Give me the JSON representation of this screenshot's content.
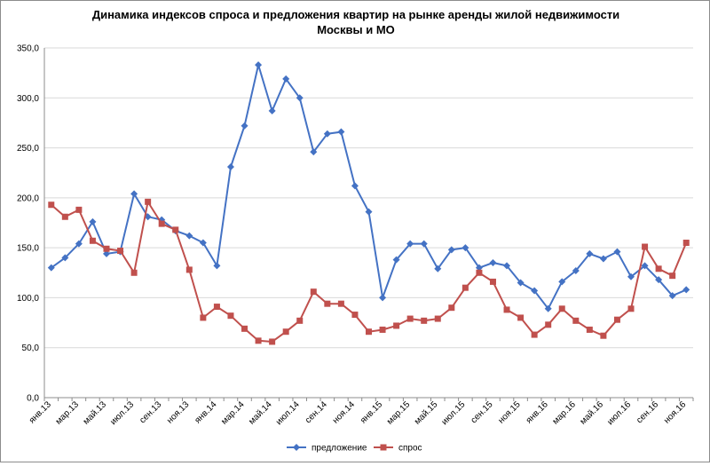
{
  "chart_data": {
    "type": "line",
    "title_lines": [
      "Динамика индексов спроса и предложения квартир на рынке аренды жилой недвижимости",
      "Москвы и МО"
    ],
    "xlabel": "",
    "ylabel": "",
    "ylim": [
      0,
      350
    ],
    "y_ticks": [
      "0,0",
      "50,0",
      "100,0",
      "150,0",
      "200,0",
      "250,0",
      "300,0",
      "350,0"
    ],
    "grid": true,
    "legend_position": "bottom",
    "x": [
      "янв.13",
      "фев.13",
      "мар.13",
      "апр.13",
      "май.13",
      "июн.13",
      "июл.13",
      "авг.13",
      "сен.13",
      "окт.13",
      "ноя.13",
      "дек.13",
      "янв.14",
      "фев.14",
      "мар.14",
      "апр.14",
      "май.14",
      "июн.14",
      "июл.14",
      "авг.14",
      "сен.14",
      "окт.14",
      "ноя.14",
      "дек.14",
      "янв.15",
      "фев.15",
      "мар.15",
      "апр.15",
      "май.15",
      "июн.15",
      "июл.15",
      "авг.15",
      "сен.15",
      "окт.15",
      "ноя.15",
      "дек.15",
      "янв.16",
      "фев.16",
      "мар.16",
      "апр.16",
      "май.16",
      "июн.16",
      "июл.16",
      "авг.16",
      "сен.16",
      "окт.16",
      "ноя.16"
    ],
    "x_tick_labels": [
      "янв.13",
      "мар.13",
      "май.13",
      "июл.13",
      "сен.13",
      "ноя.13",
      "янв.14",
      "мар.14",
      "май.14",
      "июл.14",
      "сен.14",
      "ноя.14",
      "янв.15",
      "мар.15",
      "май.15",
      "июл.15",
      "сен.15",
      "ноя.15",
      "янв.16",
      "мар.16",
      "май.16",
      "июл.16",
      "сен.16",
      "ноя.16"
    ],
    "series": [
      {
        "name": "предложение",
        "color": "#4472c4",
        "marker": "diamond",
        "values": [
          130,
          140,
          154,
          176,
          144,
          146,
          204,
          181,
          178,
          167,
          162,
          155,
          132,
          231,
          272,
          333,
          287,
          319,
          300,
          246,
          264,
          266,
          212,
          186,
          100,
          138,
          154,
          154,
          129,
          148,
          150,
          130,
          135,
          132,
          115,
          107,
          89,
          116,
          127,
          144,
          139,
          146,
          121,
          132,
          118,
          102,
          108
        ]
      },
      {
        "name": "спрос",
        "color": "#c0504d",
        "marker": "square",
        "values": [
          193,
          181,
          188,
          157,
          149,
          147,
          125,
          196,
          174,
          168,
          128,
          80,
          91,
          82,
          69,
          57,
          56,
          66,
          77,
          106,
          94,
          94,
          83,
          66,
          68,
          72,
          79,
          77,
          79,
          90,
          110,
          125,
          116,
          88,
          80,
          63,
          73,
          89,
          77,
          68,
          62,
          78,
          89,
          151,
          129,
          122,
          155
        ]
      }
    ]
  }
}
